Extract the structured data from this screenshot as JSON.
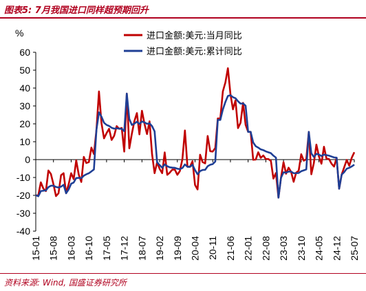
{
  "header": {
    "title": "图表5: 7月我国进口同样超预期回升",
    "source": "资料来源: Wind, 国盛证券研究所"
  },
  "chart_data": {
    "type": "line",
    "unit_label": "%",
    "ylim": [
      -40,
      60
    ],
    "yticks": [
      60,
      50,
      40,
      30,
      20,
      10,
      0,
      -10,
      -20,
      -30,
      -40
    ],
    "xlim": [
      "2015-01",
      "2025-07"
    ],
    "x_tick_labels": [
      "15-01",
      "15-08",
      "16-03",
      "16-10",
      "17-05",
      "17-12",
      "18-07",
      "19-02",
      "19-09",
      "20-04",
      "20-11",
      "21-06",
      "22-01",
      "22-08",
      "23-03",
      "23-10",
      "24-05",
      "24-12",
      "25-07"
    ],
    "x_tick_months": [
      "2015-01",
      "2015-08",
      "2016-03",
      "2016-10",
      "2017-05",
      "2017-12",
      "2018-07",
      "2019-02",
      "2019-09",
      "2020-04",
      "2020-11",
      "2021-06",
      "2022-01",
      "2022-08",
      "2023-03",
      "2023-10",
      "2024-05",
      "2024-12",
      "2025-07"
    ],
    "legend_position": "top-center",
    "grid": false,
    "series": [
      {
        "name": "进口金额:美元:当月同比",
        "color": "#c00000",
        "points": [
          [
            "2015-01",
            -20
          ],
          [
            "2015-02",
            -20
          ],
          [
            "2015-03",
            -12.7
          ],
          [
            "2015-04",
            -16.2
          ],
          [
            "2015-05",
            -17.6
          ],
          [
            "2015-06",
            -6.1
          ],
          [
            "2015-07",
            -8.1
          ],
          [
            "2015-08",
            -13.8
          ],
          [
            "2015-09",
            -20.4
          ],
          [
            "2015-10",
            -18.8
          ],
          [
            "2015-11",
            -8.7
          ],
          [
            "2015-12",
            -7.6
          ],
          [
            "2016-01",
            -18.8
          ],
          [
            "2016-02",
            -13.8
          ],
          [
            "2016-03",
            -7.6
          ],
          [
            "2016-04",
            -10.9
          ],
          [
            "2016-05",
            -0.4
          ],
          [
            "2016-06",
            -8.4
          ],
          [
            "2016-07",
            -12.5
          ],
          [
            "2016-08",
            1.5
          ],
          [
            "2016-09",
            -1.9
          ],
          [
            "2016-10",
            -1.4
          ],
          [
            "2016-11",
            6.7
          ],
          [
            "2016-12",
            3.1
          ],
          [
            "2017-01",
            16.7
          ],
          [
            "2017-02",
            38.1
          ],
          [
            "2017-03",
            20.3
          ],
          [
            "2017-04",
            11.9
          ],
          [
            "2017-05",
            14.8
          ],
          [
            "2017-06",
            17.2
          ],
          [
            "2017-07",
            11
          ],
          [
            "2017-08",
            13.3
          ],
          [
            "2017-09",
            18.7
          ],
          [
            "2017-10",
            17.2
          ],
          [
            "2017-11",
            17.7
          ],
          [
            "2017-12",
            4.5
          ],
          [
            "2018-01",
            36.9
          ],
          [
            "2018-02",
            6.3
          ],
          [
            "2018-03",
            14.4
          ],
          [
            "2018-04",
            21.5
          ],
          [
            "2018-05",
            26
          ],
          [
            "2018-06",
            14.1
          ],
          [
            "2018-07",
            27.3
          ],
          [
            "2018-08",
            20
          ],
          [
            "2018-09",
            14.3
          ],
          [
            "2018-10",
            21.4
          ],
          [
            "2018-11",
            3
          ],
          [
            "2018-12",
            -7.6
          ],
          [
            "2019-01",
            -1.5
          ],
          [
            "2019-02",
            -5.2
          ],
          [
            "2019-03",
            -7.6
          ],
          [
            "2019-04",
            4
          ],
          [
            "2019-05",
            -8.5
          ],
          [
            "2019-06",
            -7.3
          ],
          [
            "2019-07",
            -5.6
          ],
          [
            "2019-08",
            -5.6
          ],
          [
            "2019-09",
            -8.5
          ],
          [
            "2019-10",
            -6.4
          ],
          [
            "2019-11",
            0.3
          ],
          [
            "2019-12",
            16.3
          ],
          [
            "2020-01",
            -4
          ],
          [
            "2020-02",
            -4
          ],
          [
            "2020-03",
            -0.9
          ],
          [
            "2020-04",
            -14.2
          ],
          [
            "2020-05",
            -16.7
          ],
          [
            "2020-06",
            2.7
          ],
          [
            "2020-07",
            -1.4
          ],
          [
            "2020-08",
            -2.1
          ],
          [
            "2020-09",
            13.2
          ],
          [
            "2020-10",
            4.7
          ],
          [
            "2020-11",
            4.5
          ],
          [
            "2020-12",
            6.5
          ],
          [
            "2021-01",
            23
          ],
          [
            "2021-02",
            23
          ],
          [
            "2021-03",
            38.1
          ],
          [
            "2021-04",
            43.1
          ],
          [
            "2021-05",
            51.1
          ],
          [
            "2021-06",
            36.7
          ],
          [
            "2021-07",
            28.1
          ],
          [
            "2021-08",
            33.1
          ],
          [
            "2021-09",
            17.6
          ],
          [
            "2021-10",
            20.6
          ],
          [
            "2021-11",
            31.7
          ],
          [
            "2021-12",
            19.5
          ],
          [
            "2022-01",
            15.5
          ],
          [
            "2022-02",
            15.5
          ],
          [
            "2022-03",
            -0.1
          ],
          [
            "2022-04",
            0
          ],
          [
            "2022-05",
            4.1
          ],
          [
            "2022-06",
            1
          ],
          [
            "2022-07",
            2.3
          ],
          [
            "2022-08",
            0.3
          ],
          [
            "2022-09",
            0.3
          ],
          [
            "2022-10",
            -0.7
          ],
          [
            "2022-11",
            -10.6
          ],
          [
            "2022-12",
            -7.5
          ],
          [
            "2023-01",
            -21.3
          ],
          [
            "2023-02",
            -10.2
          ],
          [
            "2023-03",
            -1.4
          ],
          [
            "2023-04",
            -7.9
          ],
          [
            "2023-05",
            -4.5
          ],
          [
            "2023-06",
            -6.8
          ],
          [
            "2023-07",
            -12.4
          ],
          [
            "2023-08",
            -7.3
          ],
          [
            "2023-09",
            -6.2
          ],
          [
            "2023-10",
            3
          ],
          [
            "2023-11",
            -0.6
          ],
          [
            "2023-12",
            0.2
          ],
          [
            "2024-01",
            15.5
          ],
          [
            "2024-02",
            -8.2
          ],
          [
            "2024-03",
            -1.9
          ],
          [
            "2024-04",
            8.4
          ],
          [
            "2024-05",
            1.8
          ],
          [
            "2024-06",
            -2.3
          ],
          [
            "2024-07",
            7.2
          ],
          [
            "2024-08",
            0.5
          ],
          [
            "2024-09",
            0.3
          ],
          [
            "2024-10",
            -2.3
          ],
          [
            "2024-11",
            -3.9
          ],
          [
            "2024-12",
            1
          ],
          [
            "2025-01",
            -16.3
          ],
          [
            "2025-02",
            -8.4
          ],
          [
            "2025-03",
            -4.3
          ],
          [
            "2025-04",
            -0.2
          ],
          [
            "2025-05",
            -3.4
          ],
          [
            "2025-06",
            1.1
          ],
          [
            "2025-07",
            4.1
          ]
        ]
      },
      {
        "name": "进口金额:美元:累计同比",
        "color": "#1f3f95",
        "points": [
          [
            "2015-01",
            -19.9
          ],
          [
            "2015-02",
            -20.5
          ],
          [
            "2015-03",
            -17.6
          ],
          [
            "2015-04",
            -17.4
          ],
          [
            "2015-05",
            -17.2
          ],
          [
            "2015-06",
            -15.4
          ],
          [
            "2015-07",
            -14.6
          ],
          [
            "2015-08",
            -14.6
          ],
          [
            "2015-09",
            -15.3
          ],
          [
            "2015-10",
            -15.6
          ],
          [
            "2015-11",
            -15.1
          ],
          [
            "2015-12",
            -14.1
          ],
          [
            "2016-01",
            -18.8
          ],
          [
            "2016-02",
            -16.7
          ],
          [
            "2016-03",
            -13.5
          ],
          [
            "2016-04",
            -12.8
          ],
          [
            "2016-05",
            -10.3
          ],
          [
            "2016-06",
            -10.2
          ],
          [
            "2016-07",
            -10.4
          ],
          [
            "2016-08",
            -9
          ],
          [
            "2016-09",
            -8.2
          ],
          [
            "2016-10",
            -7.6
          ],
          [
            "2016-11",
            -6.6
          ],
          [
            "2016-12",
            -5.5
          ],
          [
            "2017-01",
            16.7
          ],
          [
            "2017-02",
            26.4
          ],
          [
            "2017-03",
            24
          ],
          [
            "2017-04",
            20.6
          ],
          [
            "2017-05",
            19.4
          ],
          [
            "2017-06",
            18.8
          ],
          [
            "2017-07",
            17.8
          ],
          [
            "2017-08",
            17.3
          ],
          [
            "2017-09",
            17.5
          ],
          [
            "2017-10",
            17.3
          ],
          [
            "2017-11",
            17.2
          ],
          [
            "2017-12",
            15.9
          ],
          [
            "2018-01",
            36.9
          ],
          [
            "2018-02",
            22.7
          ],
          [
            "2018-03",
            19.4
          ],
          [
            "2018-04",
            20.1
          ],
          [
            "2018-05",
            21.2
          ],
          [
            "2018-06",
            19.9
          ],
          [
            "2018-07",
            21.3
          ],
          [
            "2018-08",
            20.8
          ],
          [
            "2018-09",
            20
          ],
          [
            "2018-10",
            20.3
          ],
          [
            "2018-11",
            18.7
          ],
          [
            "2018-12",
            15.8
          ],
          [
            "2019-01",
            -1.5
          ],
          [
            "2019-02",
            -3.1
          ],
          [
            "2019-03",
            -4.5
          ],
          [
            "2019-04",
            -2.7
          ],
          [
            "2019-05",
            -3.7
          ],
          [
            "2019-06",
            -4.3
          ],
          [
            "2019-07",
            -4.5
          ],
          [
            "2019-08",
            -4.6
          ],
          [
            "2019-09",
            -5.1
          ],
          [
            "2019-10",
            -5.3
          ],
          [
            "2019-11",
            -4.7
          ],
          [
            "2019-12",
            -2.7
          ],
          [
            "2020-01",
            -4
          ],
          [
            "2020-02",
            -4
          ],
          [
            "2020-03",
            -2.9
          ],
          [
            "2020-04",
            -5.9
          ],
          [
            "2020-05",
            -8.2
          ],
          [
            "2020-06",
            -6.4
          ],
          [
            "2020-07",
            -5.8
          ],
          [
            "2020-08",
            -5.7
          ],
          [
            "2020-09",
            -3.7
          ],
          [
            "2020-10",
            -2.9
          ],
          [
            "2020-11",
            -2.5
          ],
          [
            "2020-12",
            -1.1
          ],
          [
            "2021-01",
            22.2
          ],
          [
            "2021-02",
            22.2
          ],
          [
            "2021-03",
            28
          ],
          [
            "2021-04",
            32.2
          ],
          [
            "2021-05",
            35.6
          ],
          [
            "2021-06",
            36
          ],
          [
            "2021-07",
            34.9
          ],
          [
            "2021-08",
            34.3
          ],
          [
            "2021-09",
            32.6
          ],
          [
            "2021-10",
            31.3
          ],
          [
            "2021-11",
            31.4
          ],
          [
            "2021-12",
            30.1
          ],
          [
            "2022-01",
            15.5
          ],
          [
            "2022-02",
            15.5
          ],
          [
            "2022-03",
            9.6
          ],
          [
            "2022-04",
            7.5
          ],
          [
            "2022-05",
            6.7
          ],
          [
            "2022-06",
            5.7
          ],
          [
            "2022-07",
            5.3
          ],
          [
            "2022-08",
            4.6
          ],
          [
            "2022-09",
            4.1
          ],
          [
            "2022-10",
            3.6
          ],
          [
            "2022-11",
            2.2
          ],
          [
            "2022-12",
            1.1
          ],
          [
            "2023-01",
            -21.3
          ],
          [
            "2023-02",
            -10.2
          ],
          [
            "2023-03",
            -7.1
          ],
          [
            "2023-04",
            -7.3
          ],
          [
            "2023-05",
            -6.7
          ],
          [
            "2023-06",
            -6.7
          ],
          [
            "2023-07",
            -7.6
          ],
          [
            "2023-08",
            -7.6
          ],
          [
            "2023-09",
            -7.5
          ],
          [
            "2023-10",
            -6.5
          ],
          [
            "2023-11",
            -6
          ],
          [
            "2023-12",
            -5.5
          ],
          [
            "2024-01",
            15.5
          ],
          [
            "2024-02",
            3.5
          ],
          [
            "2024-03",
            1.5
          ],
          [
            "2024-04",
            3.2
          ],
          [
            "2024-05",
            2.8
          ],
          [
            "2024-06",
            2
          ],
          [
            "2024-07",
            2.8
          ],
          [
            "2024-08",
            2.5
          ],
          [
            "2024-09",
            2.2
          ],
          [
            "2024-10",
            1.7
          ],
          [
            "2024-11",
            1.2
          ],
          [
            "2024-12",
            1.1
          ],
          [
            "2025-01",
            -16.3
          ],
          [
            "2025-02",
            -8.4
          ],
          [
            "2025-03",
            -7
          ],
          [
            "2025-04",
            -5.1
          ],
          [
            "2025-05",
            -4.6
          ],
          [
            "2025-06",
            -3.8
          ],
          [
            "2025-07",
            -2.8
          ]
        ]
      }
    ]
  }
}
